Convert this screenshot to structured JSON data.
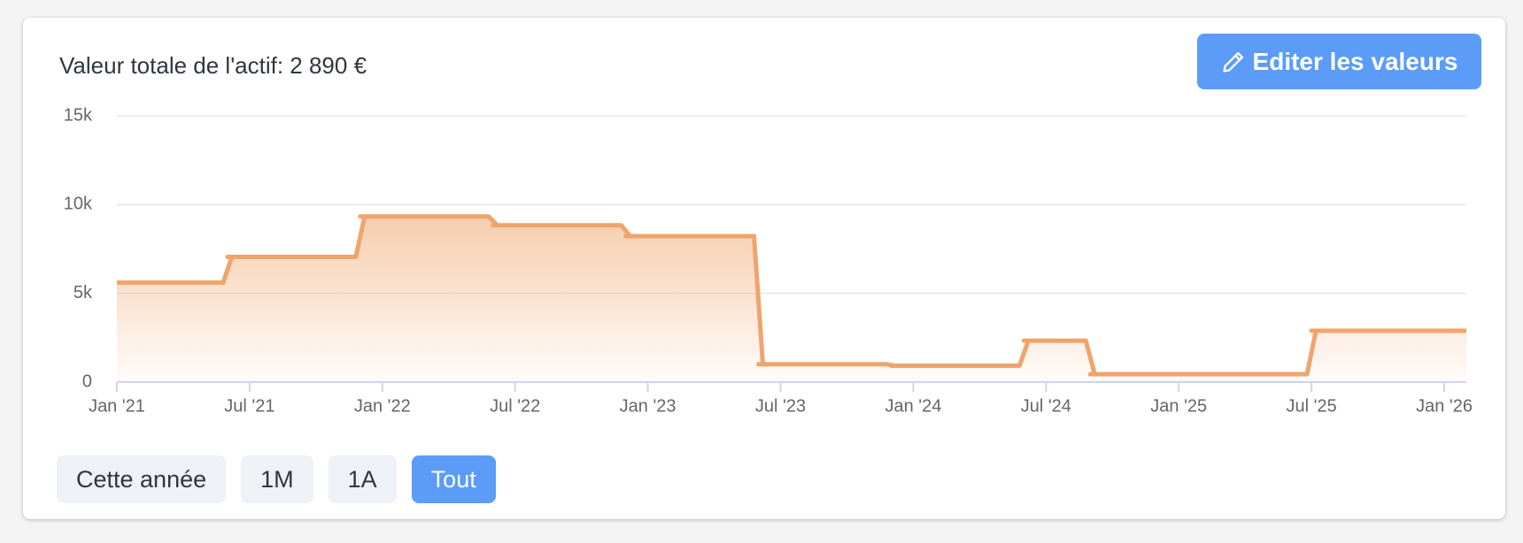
{
  "chart_data": {
    "type": "line",
    "title": "Valeur totale de l'actif: 2 890 €",
    "x": [
      "2021-01",
      "2021-06",
      "2021-12",
      "2022-06",
      "2022-12",
      "2023-06",
      "2023-12",
      "2024-06",
      "2024-09",
      "2025-07",
      "2026-02"
    ],
    "values": [
      5600,
      7050,
      9330,
      8830,
      8220,
      1000,
      920,
      2330,
      440,
      2890,
      2890
    ],
    "color": "#f0a46c",
    "xlim": [
      "2021-01",
      "2026-02"
    ],
    "xticks": [
      {
        "value": "2021-01",
        "label": "Jan '21"
      },
      {
        "value": "2021-07",
        "label": "Jul '21"
      },
      {
        "value": "2022-01",
        "label": "Jan '22"
      },
      {
        "value": "2022-07",
        "label": "Jul '22"
      },
      {
        "value": "2023-01",
        "label": "Jan '23"
      },
      {
        "value": "2023-07",
        "label": "Jul '23"
      },
      {
        "value": "2024-01",
        "label": "Jan '24"
      },
      {
        "value": "2024-07",
        "label": "Jul '24"
      },
      {
        "value": "2025-01",
        "label": "Jan '25"
      },
      {
        "value": "2025-07",
        "label": "Jul '25"
      },
      {
        "value": "2026-01",
        "label": "Jan '26"
      }
    ],
    "ylim": [
      0,
      15000
    ],
    "yticks": [
      0,
      {
        "value": 5000,
        "label": "5k"
      },
      {
        "value": 10000,
        "label": "10k"
      },
      {
        "value": 15000,
        "label": "15k"
      }
    ],
    "grid": true,
    "step": true
  },
  "actions": {
    "edit": "Editer les valeurs"
  },
  "ranges": [
    "Cette année",
    "1M",
    "1A",
    "Tout"
  ],
  "active_range": 3
}
